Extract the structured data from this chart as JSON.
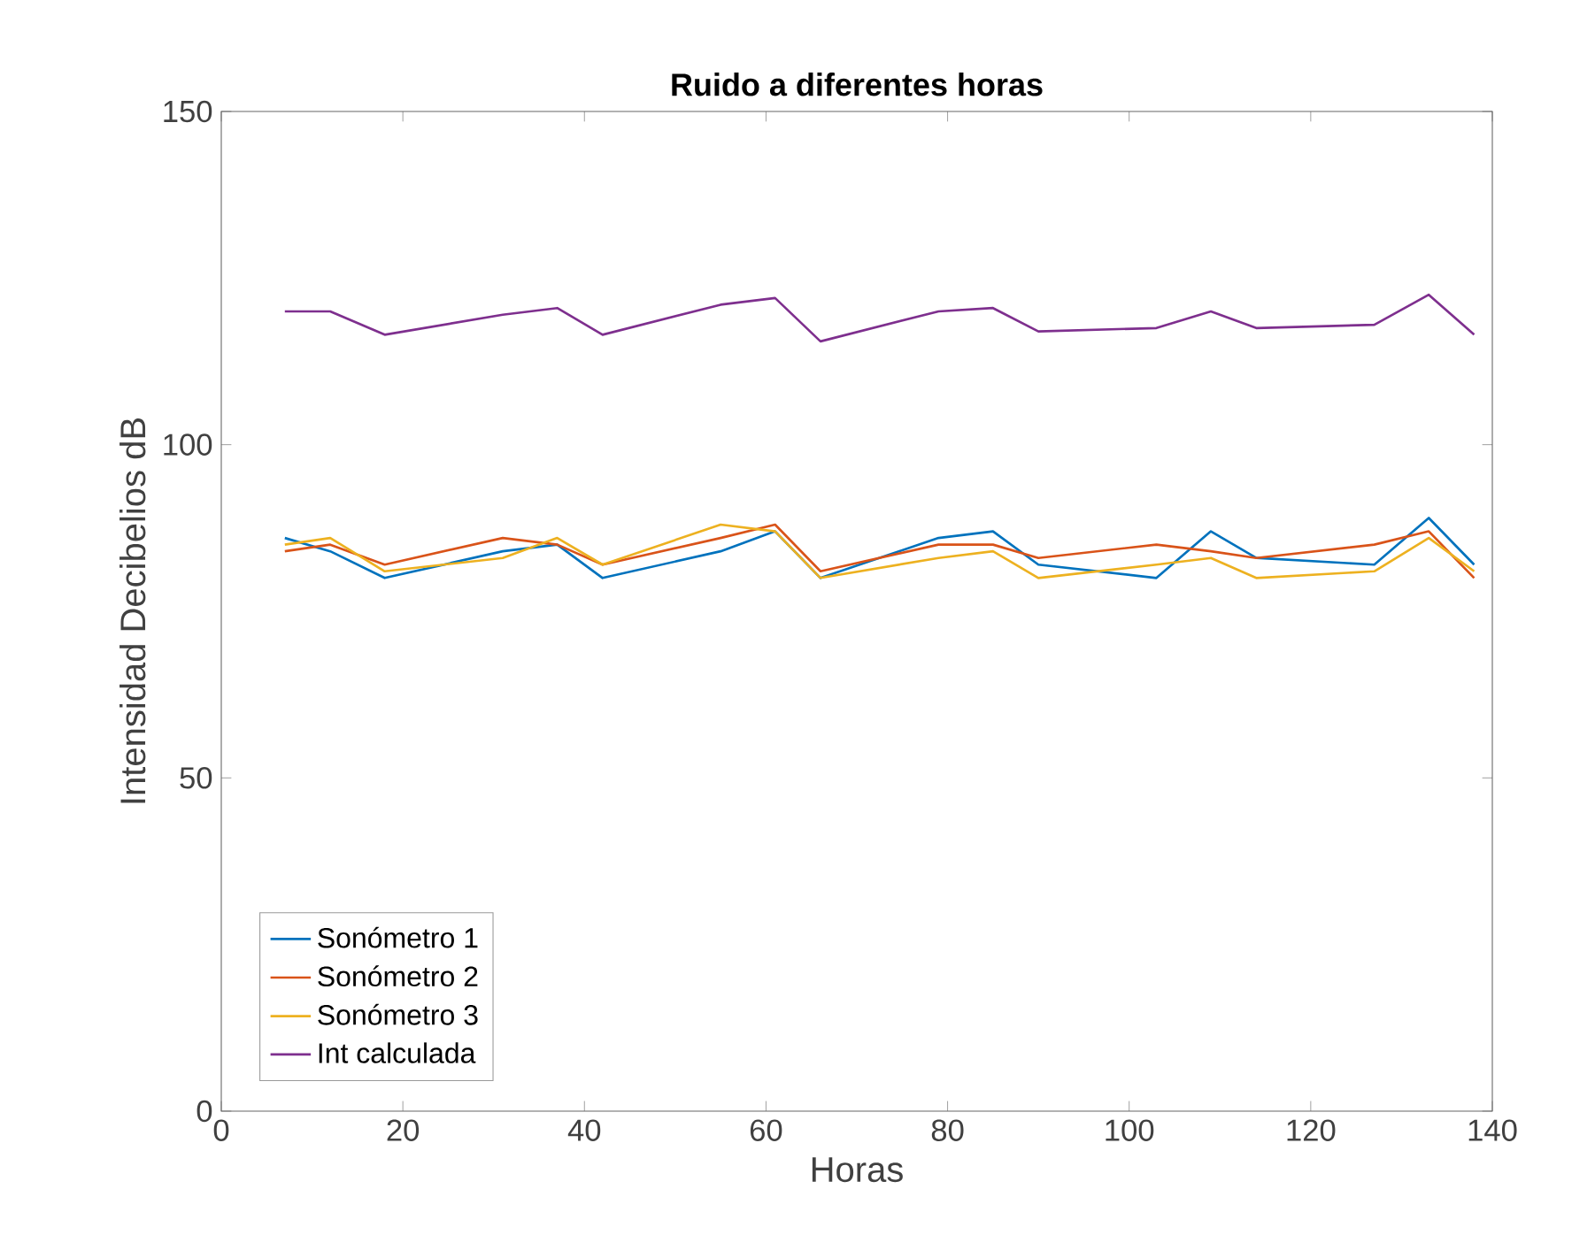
{
  "chart_data": {
    "type": "line",
    "title": "Ruido a diferentes horas",
    "xlabel": "Horas",
    "ylabel": "Intensidad Decibelios dB",
    "x": [
      7,
      12,
      18,
      31,
      37,
      42,
      55,
      61,
      66,
      79,
      85,
      90,
      103,
      109,
      114,
      127,
      133,
      138
    ],
    "series": [
      {
        "name": "Sonómetro 1",
        "color": "#0072bd",
        "values": [
          86,
          84,
          80,
          84,
          85,
          80,
          84,
          87,
          80,
          86,
          87,
          82,
          80,
          87,
          83,
          82,
          89,
          82
        ]
      },
      {
        "name": "Sonómetro 2",
        "color": "#d95319",
        "values": [
          84,
          85,
          82,
          86,
          85,
          82,
          86,
          88,
          81,
          85,
          85,
          83,
          85,
          84,
          83,
          85,
          87,
          80
        ]
      },
      {
        "name": "Sonómetro 3",
        "color": "#edb120",
        "values": [
          85,
          86,
          81,
          83,
          86,
          82,
          88,
          87,
          80,
          83,
          84,
          80,
          82,
          83,
          80,
          81,
          86,
          81
        ]
      },
      {
        "name": "Int calculada",
        "color": "#7e2f8e",
        "values": [
          120,
          120,
          116.5,
          119.5,
          120.5,
          116.5,
          121,
          122,
          115.5,
          120,
          120.5,
          117,
          117.5,
          120,
          117.5,
          118,
          122.5,
          116.5
        ]
      }
    ],
    "xlim": [
      0,
      140
    ],
    "xticks": [
      0,
      20,
      40,
      60,
      80,
      100,
      120,
      140
    ],
    "ylim": [
      0,
      150
    ],
    "yticks": [
      0,
      50,
      100,
      150
    ],
    "grid": false,
    "legend": "bottom left",
    "marker": "none",
    "line_style": "solid"
  }
}
